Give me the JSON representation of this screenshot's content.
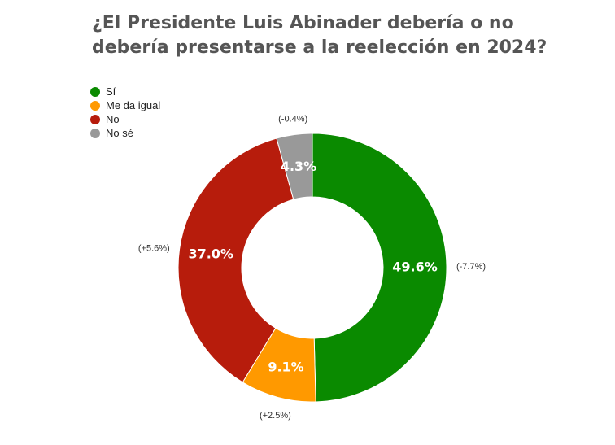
{
  "chart_data": {
    "type": "pie",
    "variant": "donut",
    "title_lines": [
      "¿El Presidente Luis Abinader debería o no",
      "debería presentarse a la reelección en 2024?"
    ],
    "legend_position": "top-left",
    "slices": [
      {
        "name": "Sí",
        "value": 49.6,
        "label": "49.6%",
        "change": "(-7.7%)",
        "color": "#0a8a00"
      },
      {
        "name": "Me da igual",
        "value": 9.1,
        "label": "9.1%",
        "change": "(+2.5%)",
        "color": "#ff9900"
      },
      {
        "name": "No",
        "value": 37.0,
        "label": "37.0%",
        "change": "(+5.6%)",
        "color": "#b71c0c"
      },
      {
        "name": "No sé",
        "value": 4.3,
        "label": "4.3%",
        "change": "(-0.4%)",
        "color": "#999999"
      }
    ]
  }
}
